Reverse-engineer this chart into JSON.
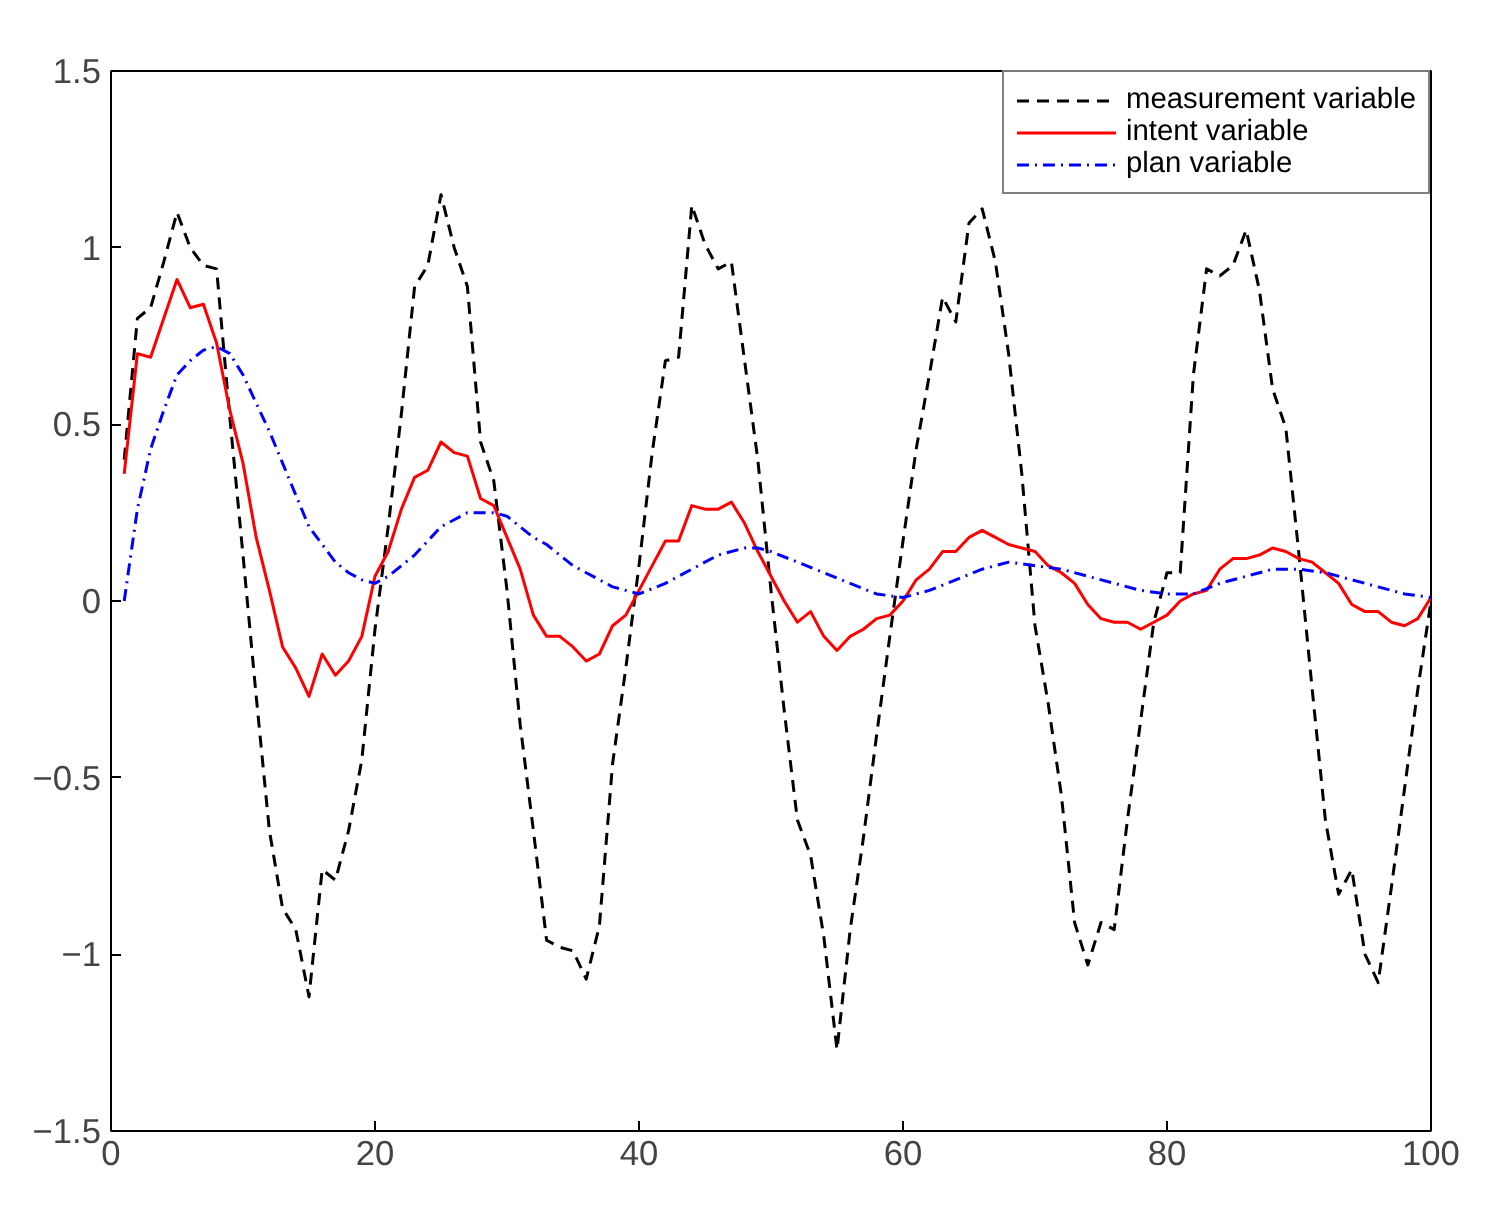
{
  "chart_data": {
    "type": "line",
    "x": [
      1,
      2,
      3,
      4,
      5,
      6,
      7,
      8,
      9,
      10,
      11,
      12,
      13,
      14,
      15,
      16,
      17,
      18,
      19,
      20,
      21,
      22,
      23,
      24,
      25,
      26,
      27,
      28,
      29,
      30,
      31,
      32,
      33,
      34,
      35,
      36,
      37,
      38,
      39,
      40,
      41,
      42,
      43,
      44,
      45,
      46,
      47,
      48,
      49,
      50,
      51,
      52,
      53,
      54,
      55,
      56,
      57,
      58,
      59,
      60,
      61,
      62,
      63,
      64,
      65,
      66,
      67,
      68,
      69,
      70,
      71,
      72,
      73,
      74,
      75,
      76,
      77,
      78,
      79,
      80,
      81,
      82,
      83,
      84,
      85,
      86,
      87,
      88,
      89,
      90,
      91,
      92,
      93,
      94,
      95,
      96,
      97,
      98,
      99,
      100
    ],
    "series": [
      {
        "name": "measurement variable",
        "color": "#000000",
        "line_style": "dashed",
        "values": [
          0.4,
          0.8,
          0.83,
          0.96,
          1.1,
          1.0,
          0.95,
          0.94,
          0.52,
          0.13,
          -0.27,
          -0.65,
          -0.87,
          -0.93,
          -1.12,
          -0.76,
          -0.79,
          -0.65,
          -0.45,
          -0.08,
          0.21,
          0.53,
          0.89,
          0.95,
          1.15,
          1.0,
          0.89,
          0.45,
          0.34,
          0.03,
          -0.35,
          -0.65,
          -0.96,
          -0.98,
          -0.99,
          -1.07,
          -0.92,
          -0.46,
          -0.19,
          0.1,
          0.42,
          0.68,
          0.69,
          1.12,
          1.01,
          0.94,
          0.96,
          0.68,
          0.4,
          0.03,
          -0.31,
          -0.62,
          -0.72,
          -0.95,
          -1.27,
          -0.93,
          -0.67,
          -0.38,
          -0.1,
          0.17,
          0.43,
          0.64,
          0.86,
          0.79,
          1.07,
          1.11,
          0.96,
          0.7,
          0.36,
          -0.07,
          -0.29,
          -0.55,
          -0.91,
          -1.03,
          -0.91,
          -0.93,
          -0.62,
          -0.34,
          -0.06,
          0.08,
          0.08,
          0.64,
          0.94,
          0.92,
          0.95,
          1.05,
          0.88,
          0.6,
          0.49,
          0.13,
          -0.25,
          -0.62,
          -0.83,
          -0.76,
          -1.0,
          -1.08,
          -0.81,
          -0.53,
          -0.25,
          0.0
        ]
      },
      {
        "name": "intent variable",
        "color": "#ff0000",
        "line_style": "solid",
        "values": [
          0.36,
          0.7,
          0.69,
          0.8,
          0.91,
          0.83,
          0.84,
          0.73,
          0.54,
          0.39,
          0.18,
          0.03,
          -0.13,
          -0.19,
          -0.27,
          -0.15,
          -0.21,
          -0.17,
          -0.1,
          0.07,
          0.14,
          0.26,
          0.35,
          0.37,
          0.45,
          0.42,
          0.41,
          0.29,
          0.27,
          0.18,
          0.09,
          -0.04,
          -0.1,
          -0.1,
          -0.13,
          -0.17,
          -0.15,
          -0.07,
          -0.04,
          0.03,
          0.1,
          0.17,
          0.17,
          0.27,
          0.26,
          0.26,
          0.28,
          0.22,
          0.14,
          0.07,
          0.0,
          -0.06,
          -0.03,
          -0.1,
          -0.14,
          -0.1,
          -0.08,
          -0.05,
          -0.04,
          0.0,
          0.06,
          0.09,
          0.14,
          0.14,
          0.18,
          0.2,
          0.18,
          0.16,
          0.15,
          0.14,
          0.1,
          0.08,
          0.05,
          -0.01,
          -0.05,
          -0.06,
          -0.06,
          -0.08,
          -0.06,
          -0.04,
          0.0,
          0.02,
          0.03,
          0.09,
          0.12,
          0.12,
          0.13,
          0.15,
          0.14,
          0.12,
          0.11,
          0.08,
          0.05,
          -0.01,
          -0.03,
          -0.03,
          -0.06,
          -0.07,
          -0.05,
          0.01
        ]
      },
      {
        "name": "plan variable",
        "color": "#0000ff",
        "line_style": "dashdot",
        "x": [
          1,
          2,
          3,
          4,
          5,
          6,
          7,
          8,
          9,
          10,
          11,
          12,
          13,
          14,
          15,
          16,
          17,
          18,
          19,
          20,
          21,
          22,
          23,
          24,
          25,
          26,
          27,
          28,
          29,
          30,
          31,
          32,
          33,
          34,
          35,
          36,
          38,
          40,
          42,
          44,
          46,
          48,
          49,
          50,
          52,
          54,
          56,
          58,
          60,
          62,
          64,
          66,
          68,
          70,
          72,
          74,
          76,
          78,
          80,
          82,
          84,
          86,
          88,
          90,
          92,
          94,
          96,
          98,
          100
        ],
        "values": [
          0.0,
          0.26,
          0.43,
          0.54,
          0.64,
          0.68,
          0.71,
          0.72,
          0.7,
          0.64,
          0.56,
          0.48,
          0.39,
          0.3,
          0.21,
          0.16,
          0.11,
          0.08,
          0.06,
          0.05,
          0.07,
          0.1,
          0.13,
          0.17,
          0.21,
          0.23,
          0.25,
          0.25,
          0.25,
          0.24,
          0.21,
          0.18,
          0.16,
          0.13,
          0.1,
          0.08,
          0.04,
          0.02,
          0.05,
          0.09,
          0.13,
          0.15,
          0.15,
          0.14,
          0.11,
          0.08,
          0.05,
          0.02,
          0.01,
          0.03,
          0.06,
          0.09,
          0.11,
          0.1,
          0.09,
          0.07,
          0.05,
          0.03,
          0.02,
          0.02,
          0.05,
          0.07,
          0.09,
          0.09,
          0.08,
          0.06,
          0.04,
          0.02,
          0.01
        ]
      }
    ],
    "xlim": [
      0,
      100
    ],
    "ylim": [
      -1.5,
      1.5
    ],
    "xticks": [
      0,
      20,
      40,
      60,
      80,
      100
    ],
    "yticks": [
      -1.5,
      -1,
      -0.5,
      0,
      0.5,
      1,
      1.5
    ],
    "legend": "top right",
    "grid": false,
    "marker": "none"
  }
}
